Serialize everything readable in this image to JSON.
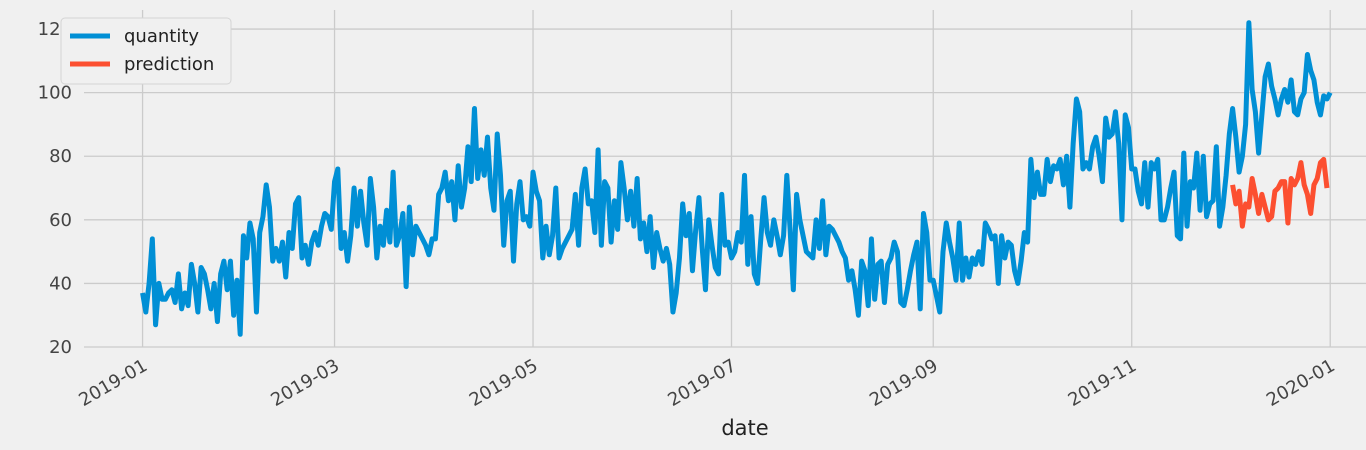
{
  "chart_data": {
    "type": "line",
    "xlabel": "date",
    "ylabel": "",
    "xlim": [
      "2018-12-14",
      "2020-01-12"
    ],
    "ylim": [
      20,
      126
    ],
    "grid": true,
    "legend_position": "top-left",
    "x_ticks": [
      "2019-01",
      "2019-03",
      "2019-05",
      "2019-07",
      "2019-09",
      "2019-11",
      "2020-01"
    ],
    "x_tick_dates": [
      "2019-01-01",
      "2019-03-01",
      "2019-05-01",
      "2019-07-01",
      "2019-09-01",
      "2019-11-01",
      "2020-01-01"
    ],
    "y_ticks": [
      20,
      40,
      60,
      80,
      100,
      120
    ],
    "series": [
      {
        "name": "quantity",
        "color": "#008fd5",
        "start_date": "2019-01-01",
        "end_date": "2019-12-31",
        "values": [
          37,
          31,
          40,
          54,
          27,
          40,
          35,
          35,
          37,
          38,
          34,
          43,
          32,
          37,
          33,
          46,
          40,
          31,
          45,
          43,
          38,
          32,
          40,
          28,
          43,
          47,
          38,
          47,
          30,
          41,
          24,
          55,
          48,
          59,
          54,
          31,
          56,
          61,
          71,
          64,
          47,
          51,
          47,
          53,
          42,
          56,
          51,
          65,
          67,
          48,
          52,
          46,
          53,
          56,
          52,
          58,
          62,
          61,
          57,
          72,
          76,
          51,
          56,
          47,
          55,
          70,
          58,
          69,
          59,
          52,
          73,
          64,
          48,
          58,
          52,
          63,
          53,
          75,
          52,
          55,
          62,
          39,
          64,
          49,
          58,
          56,
          54,
          52,
          49,
          54,
          54,
          68,
          70,
          75,
          66,
          72,
          60,
          77,
          64,
          70,
          83,
          72,
          95,
          73,
          82,
          74,
          86,
          70,
          63,
          87,
          74,
          52,
          66,
          69,
          47,
          65,
          72,
          60,
          61,
          58,
          75,
          69,
          66,
          48,
          58,
          49,
          55,
          70,
          48,
          51,
          53,
          55,
          57,
          68,
          52,
          70,
          76,
          65,
          66,
          56,
          82,
          52,
          72,
          70,
          53,
          66,
          57,
          78,
          70,
          60,
          69,
          58,
          73,
          54,
          59,
          50,
          61,
          45,
          56,
          51,
          47,
          51,
          46,
          31,
          37,
          48,
          65,
          55,
          62,
          44,
          57,
          67,
          51,
          38,
          60,
          52,
          45,
          43,
          68,
          52,
          53,
          48,
          50,
          56,
          53,
          74,
          46,
          61,
          43,
          40,
          54,
          67,
          56,
          52,
          60,
          55,
          49,
          55,
          74,
          57,
          38,
          68,
          60,
          55,
          50,
          49,
          48,
          60,
          51,
          66,
          49,
          58,
          57,
          55,
          53,
          50,
          48,
          41,
          44,
          38,
          30,
          47,
          44,
          33,
          54,
          35,
          46,
          47,
          34,
          46,
          48,
          53,
          50,
          34,
          33,
          38,
          44,
          49,
          53,
          32,
          62,
          56,
          41,
          41,
          36,
          31,
          50,
          59,
          53,
          48,
          41,
          59,
          41,
          48,
          42,
          48,
          46,
          50,
          46,
          59,
          57,
          54,
          55,
          40,
          55,
          48,
          53,
          52,
          44,
          40,
          47,
          56,
          53,
          79,
          67,
          75,
          68,
          68,
          79,
          72,
          77,
          76,
          79,
          71,
          80,
          64,
          84,
          98,
          94,
          76,
          78,
          76,
          83,
          86,
          80,
          72,
          92,
          86,
          87,
          94,
          84,
          60,
          93,
          89,
          76,
          76,
          69,
          65,
          78,
          64,
          78,
          76,
          79,
          60,
          60,
          64,
          70,
          75,
          55,
          54,
          81,
          58,
          72,
          70,
          81,
          63,
          80,
          61,
          65,
          66,
          83,
          58,
          64,
          74,
          87,
          95,
          86,
          75,
          80,
          90,
          122,
          101,
          94,
          81,
          93,
          105,
          109,
          102,
          98,
          93,
          98,
          101,
          97,
          104,
          94,
          93,
          98,
          100,
          112,
          107,
          104,
          97,
          93,
          99,
          98,
          100
        ]
      },
      {
        "name": "prediction",
        "color": "#fc4f30",
        "start_date": "2019-12-02",
        "end_date": "2019-12-31",
        "values": [
          71,
          65,
          69,
          58,
          65,
          64,
          73,
          68,
          62,
          68,
          64,
          60,
          61,
          69,
          70,
          72,
          72,
          59,
          73,
          71,
          73,
          78,
          71,
          68,
          62,
          71,
          73,
          78,
          79,
          70
        ]
      }
    ]
  }
}
